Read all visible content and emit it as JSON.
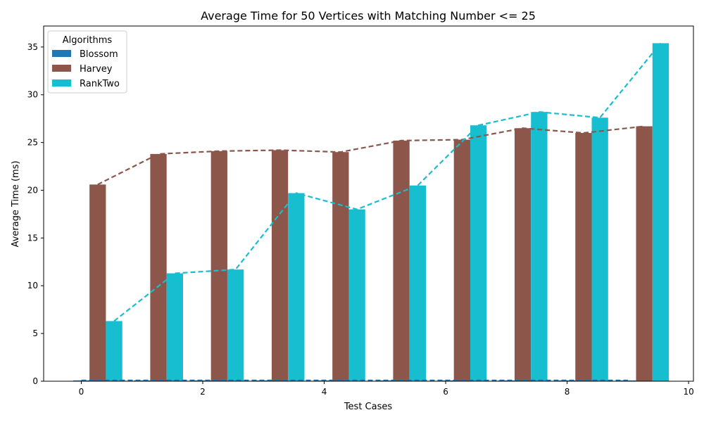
{
  "chart_data": {
    "type": "bar",
    "title": "Average Time for 50 Vertices with Matching Number <= 25",
    "xlabel": "Test Cases",
    "ylabel": "Average Time (ms)",
    "xlim": [
      -0.62,
      10.08
    ],
    "ylim": [
      0,
      37.2
    ],
    "x_ticks": [
      0,
      2,
      4,
      6,
      8,
      10
    ],
    "y_ticks": [
      0,
      5,
      10,
      15,
      20,
      25,
      30,
      35
    ],
    "grid": false,
    "legend": {
      "title": "Algorithms",
      "placement": "top-left"
    },
    "x": [
      0,
      1,
      2,
      3,
      4,
      5,
      6,
      7,
      8,
      9
    ],
    "bar_width": 0.27,
    "series": [
      {
        "name": "Blossom",
        "color": "#1f77b4",
        "offset": 0,
        "values": [
          0.08,
          0.08,
          0.08,
          0.08,
          0.08,
          0.08,
          0.08,
          0.08,
          0.08,
          0.08
        ]
      },
      {
        "name": "Harvey",
        "color": "#8c564b",
        "offset": 0.27,
        "values": [
          20.6,
          23.8,
          24.1,
          24.2,
          24.0,
          25.2,
          25.3,
          26.5,
          26.0,
          26.7
        ]
      },
      {
        "name": "RankTwo",
        "color": "#17becf",
        "offset": 0.54,
        "values": [
          6.3,
          11.3,
          11.7,
          19.7,
          18.0,
          20.5,
          26.8,
          28.2,
          27.6,
          35.4
        ]
      }
    ]
  }
}
